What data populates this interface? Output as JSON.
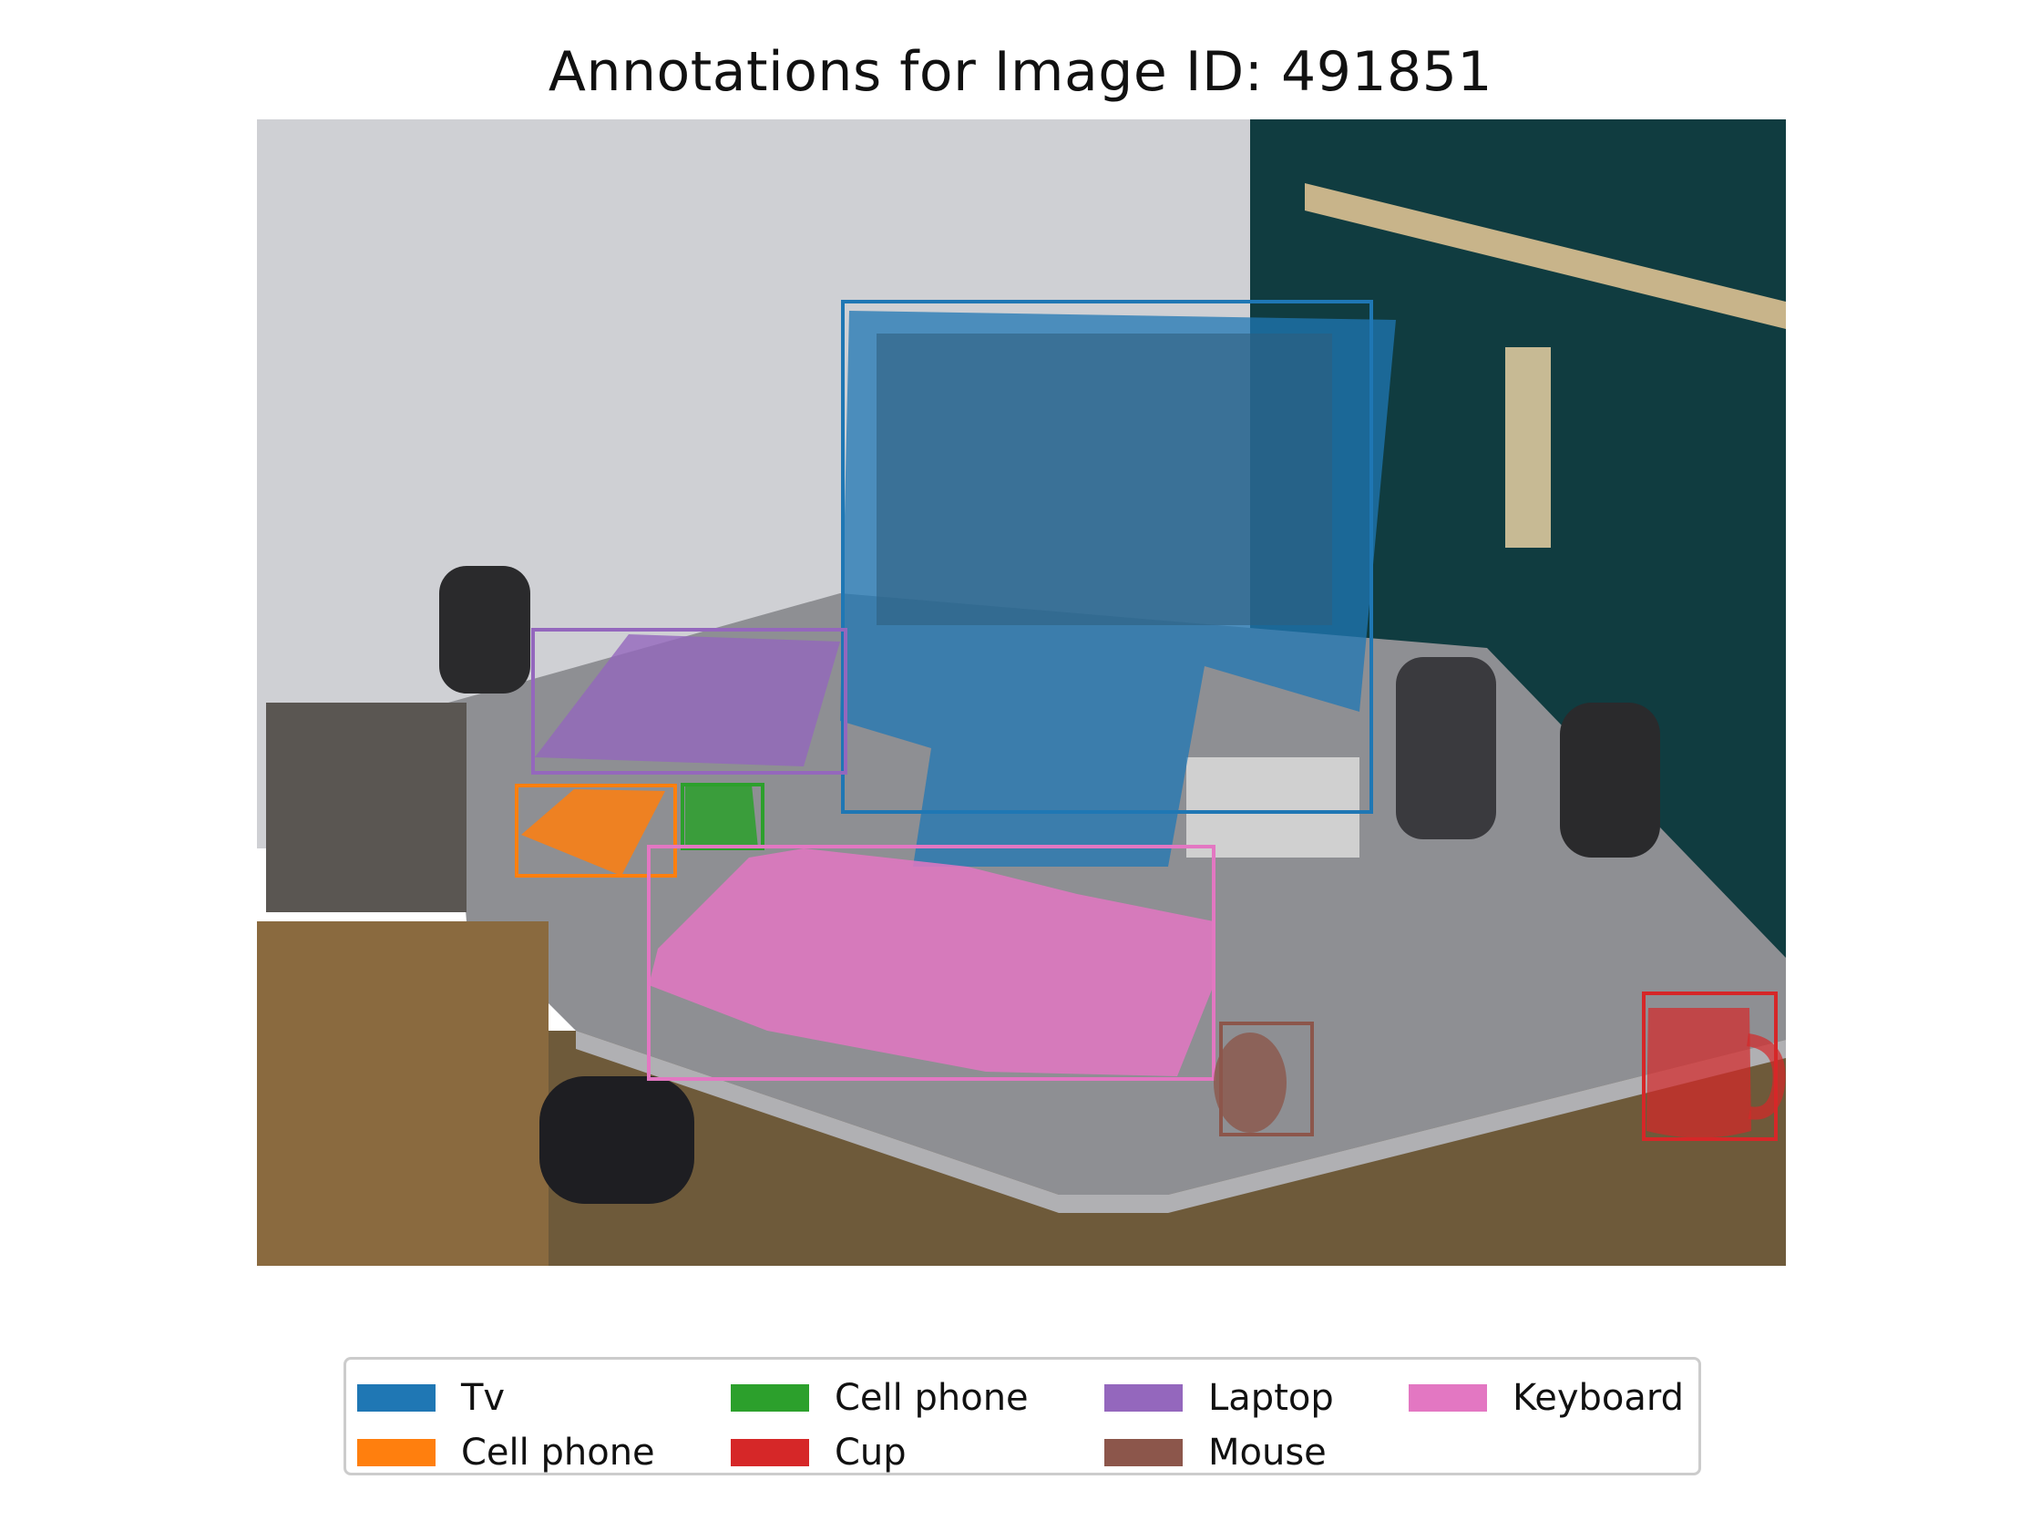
{
  "title": "Annotations for Image ID: 491851",
  "annotations": [
    {
      "label": "Tv",
      "color": "#1f77b4"
    },
    {
      "label": "Cell phone",
      "color": "#ff7f0e"
    },
    {
      "label": "Cell phone",
      "color": "#2ca02c"
    },
    {
      "label": "Cup",
      "color": "#d62728"
    },
    {
      "label": "Laptop",
      "color": "#9467bd"
    },
    {
      "label": "Mouse",
      "color": "#8c564b"
    },
    {
      "label": "Keyboard",
      "color": "#e377c2"
    }
  ],
  "legend": {
    "items": [
      {
        "label": "Tv",
        "color": "#1f77b4"
      },
      {
        "label": "Cell phone",
        "color": "#ff7f0e"
      },
      {
        "label": "Cell phone",
        "color": "#2ca02c"
      },
      {
        "label": "Cup",
        "color": "#d62728"
      },
      {
        "label": "Laptop",
        "color": "#9467bd"
      },
      {
        "label": "Mouse",
        "color": "#8c564b"
      },
      {
        "label": "Keyboard",
        "color": "#e377c2"
      }
    ]
  }
}
